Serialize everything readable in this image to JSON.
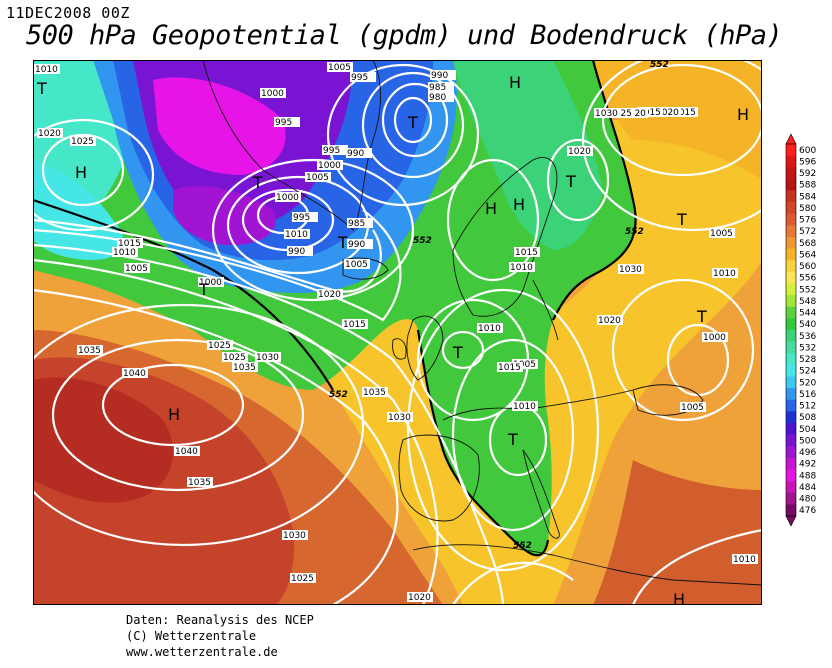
{
  "header": {
    "date": "11DEC2008 00Z",
    "title": "500 hPa Geopotential (gpdm) und Bodendruck (hPa)"
  },
  "footer": {
    "line1": "Daten: Reanalysis des NCEP",
    "line2": "(C) Wetterzentrale",
    "line3": "www.wetterzentrale.de"
  },
  "legend": {
    "values": [
      "600",
      "596",
      "592",
      "588",
      "584",
      "580",
      "576",
      "572",
      "568",
      "564",
      "560",
      "556",
      "552",
      "548",
      "544",
      "540",
      "536",
      "532",
      "528",
      "524",
      "520",
      "516",
      "512",
      "508",
      "504",
      "500",
      "496",
      "492",
      "488",
      "484",
      "480",
      "476"
    ],
    "colors": [
      "#ff1e1e",
      "#e11515",
      "#c31515",
      "#b41414",
      "#c8321e",
      "#d2462a",
      "#dc5a32",
      "#e67837",
      "#f09632",
      "#f5b428",
      "#fad23c",
      "#fae650",
      "#d2f03c",
      "#a0e632",
      "#5ad23c",
      "#32c83c",
      "#3cd278",
      "#46dca0",
      "#46e6c8",
      "#46e6e6",
      "#3cc8f0",
      "#3296f0",
      "#2864e6",
      "#1e32d2",
      "#4b14d2",
      "#7814d2",
      "#a014d2",
      "#c814d2",
      "#e614e6",
      "#c814b4",
      "#a0148c",
      "#780a64"
    ]
  },
  "map": {
    "pressure_labels": [
      "1010",
      "1025",
      "1020",
      "1015",
      "1010",
      "1005",
      "1000",
      "995",
      "995",
      "990",
      "985",
      "980",
      "1000",
      "1005",
      "995",
      "990",
      "1000",
      "1005",
      "1000",
      "995",
      "990",
      "985",
      "990",
      "1010",
      "1005",
      "1020",
      "1015",
      "1035",
      "1030",
      "1025",
      "1025",
      "1035",
      "1030",
      "1035",
      "1040",
      "1040",
      "1035",
      "1030",
      "1025",
      "1020",
      "1020",
      "1015",
      "1010",
      "1010",
      "1005",
      "1010",
      "1020",
      "1015",
      "1030",
      "1010",
      "1005",
      "1000",
      "1005",
      "1010",
      "1015",
      "1020",
      "1015",
      "1020",
      "1025",
      "1030"
    ],
    "height_labels": [
      "552",
      "552",
      "552",
      "552",
      "552"
    ],
    "highs": [
      "H",
      "H",
      "H",
      "H",
      "H",
      "H",
      "H"
    ],
    "lows": [
      "T",
      "T",
      "T",
      "T",
      "T",
      "T",
      "T",
      "T",
      "T",
      "T"
    ]
  },
  "chart_data": {
    "type": "heatmap",
    "title": "500 hPa Geopotential (gpdm) und Bodendruck (hPa)",
    "valid_time": "11DEC2008 00Z",
    "scale_gpdm": [
      476,
      480,
      484,
      488,
      492,
      496,
      500,
      504,
      508,
      512,
      516,
      520,
      524,
      528,
      532,
      536,
      540,
      544,
      548,
      552,
      556,
      560,
      564,
      568,
      572,
      576,
      580,
      584,
      588,
      592,
      596,
      600
    ],
    "surface_pressure_isobars_hPa": [
      980,
      985,
      990,
      995,
      1000,
      1005,
      1010,
      1015,
      1020,
      1025,
      1030,
      1035,
      1040
    ],
    "pressure_centers": [
      {
        "type": "H",
        "pressure": 1040,
        "location": "Atlantic west of Iberia"
      },
      {
        "type": "T",
        "pressure": 980,
        "location": "Greenland Sea"
      },
      {
        "type": "T",
        "pressure": 985,
        "location": "Southern Greenland"
      },
      {
        "type": "T",
        "pressure": 1010,
        "location": "Central Europe"
      },
      {
        "type": "T",
        "pressure": 1005,
        "location": "Central Mediterranean"
      },
      {
        "type": "H",
        "location": "Scandinavia"
      },
      {
        "type": "H",
        "location": "Western Russia"
      }
    ]
  }
}
